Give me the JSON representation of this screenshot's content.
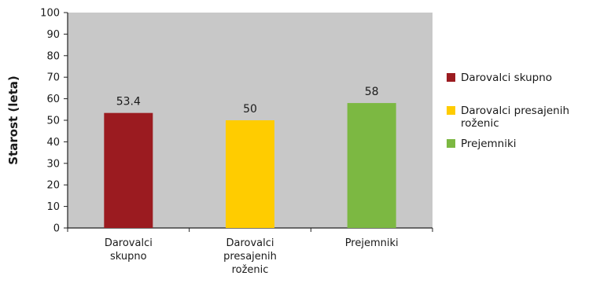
{
  "chart_data": {
    "type": "bar",
    "title": "",
    "xlabel": "",
    "ylabel": "Starost (leta)",
    "ylim": [
      0,
      100
    ],
    "ytick_step": 10,
    "grid": false,
    "legend_position": "right",
    "plot_background": "#c8c8c8",
    "categories": [
      [
        "Darovalci",
        "skupno"
      ],
      [
        "Darovalci",
        "presajenih",
        "roženic"
      ],
      [
        "Prejemniki"
      ]
    ],
    "series": [
      {
        "values": [
          53.4,
          50,
          58
        ],
        "labels": [
          "53.4",
          "50",
          "58"
        ]
      }
    ],
    "colors": [
      "#9b1b20",
      "#ffcc00",
      "#7cb842"
    ],
    "legend": [
      {
        "lines": [
          "Darovalci skupno"
        ],
        "color": "#9b1b20"
      },
      {
        "lines": [
          "Darovalci presajenih",
          "roženic"
        ],
        "color": "#ffcc00"
      },
      {
        "lines": [
          "Prejemniki"
        ],
        "color": "#7cb842"
      }
    ]
  }
}
